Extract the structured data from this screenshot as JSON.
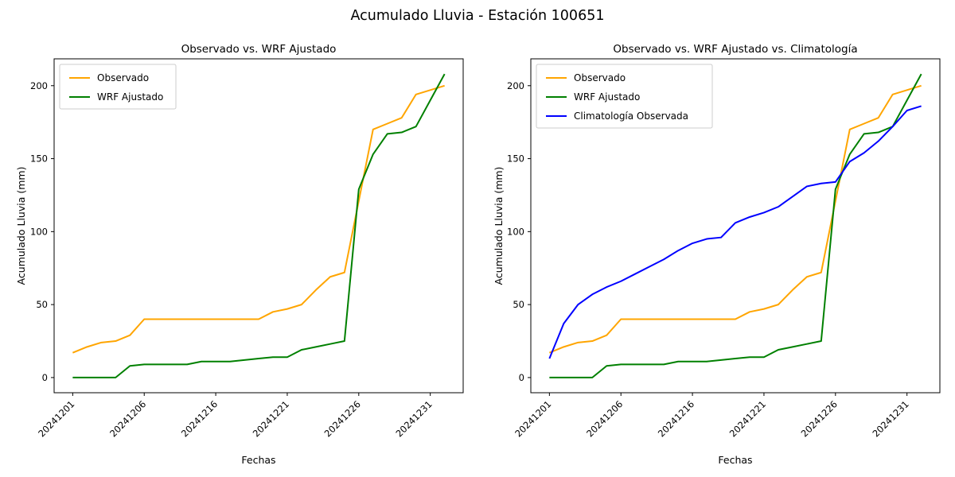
{
  "figure": {
    "suptitle": "Acumulado Lluvia - Estación 100651",
    "background": "#ffffff"
  },
  "chart_data": [
    {
      "type": "line",
      "title": "Observado vs. WRF Ajustado",
      "xlabel": "Fechas",
      "ylabel": "Acumulado Lluvia (mm)",
      "n_points": 27,
      "x_tick_positions": [
        0,
        5,
        10,
        15,
        20,
        25
      ],
      "x_tick_labels": [
        "20241201",
        "20241206",
        "20241216",
        "20241221",
        "20241226",
        "20241231"
      ],
      "x_tick_rotation": 45,
      "y_ticks": [
        0,
        50,
        100,
        150,
        200
      ],
      "xlim": [
        -1.3,
        27.3
      ],
      "ylim": [
        -10.4,
        218.4
      ],
      "grid": false,
      "legend_position": "upper left",
      "series": [
        {
          "name": "Observado",
          "color": "#ffa500",
          "values": [
            17,
            21,
            24,
            25,
            29,
            40,
            40,
            40,
            40,
            40,
            40,
            40,
            40,
            40,
            45,
            47,
            50,
            60,
            69,
            72,
            121,
            170,
            174,
            178,
            194,
            197,
            200
          ]
        },
        {
          "name": "WRF Ajustado",
          "color": "#008000",
          "values": [
            0,
            0,
            0,
            0,
            8,
            9,
            9,
            9,
            9,
            11,
            11,
            11,
            12,
            13,
            14,
            14,
            19,
            21,
            23,
            25,
            129,
            153,
            167,
            168,
            172,
            190,
            208
          ]
        }
      ]
    },
    {
      "type": "line",
      "title": "Observado vs. WRF Ajustado vs. Climatología",
      "xlabel": "Fechas",
      "ylabel": "Acumulado Lluvia (mm)",
      "n_points": 27,
      "x_tick_positions": [
        0,
        5,
        10,
        15,
        20,
        25
      ],
      "x_tick_labels": [
        "20241201",
        "20241206",
        "20241216",
        "20241221",
        "20241226",
        "20241231"
      ],
      "x_tick_rotation": 45,
      "y_ticks": [
        0,
        50,
        100,
        150,
        200
      ],
      "xlim": [
        -1.3,
        27.3
      ],
      "ylim": [
        -10.4,
        218.4
      ],
      "grid": false,
      "legend_position": "upper left",
      "series": [
        {
          "name": "Observado",
          "color": "#ffa500",
          "values": [
            17,
            21,
            24,
            25,
            29,
            40,
            40,
            40,
            40,
            40,
            40,
            40,
            40,
            40,
            45,
            47,
            50,
            60,
            69,
            72,
            121,
            170,
            174,
            178,
            194,
            197,
            200
          ]
        },
        {
          "name": "WRF Ajustado",
          "color": "#008000",
          "values": [
            0,
            0,
            0,
            0,
            8,
            9,
            9,
            9,
            9,
            11,
            11,
            11,
            12,
            13,
            14,
            14,
            19,
            21,
            23,
            25,
            129,
            153,
            167,
            168,
            172,
            190,
            208
          ]
        },
        {
          "name": "Climatología Observada",
          "color": "#0000ff",
          "values": [
            13,
            37,
            50,
            57,
            62,
            66,
            71,
            76,
            81,
            87,
            92,
            95,
            96,
            106,
            110,
            113,
            117,
            124,
            131,
            133,
            134,
            148,
            154,
            162,
            172,
            183,
            186
          ]
        }
      ]
    }
  ]
}
